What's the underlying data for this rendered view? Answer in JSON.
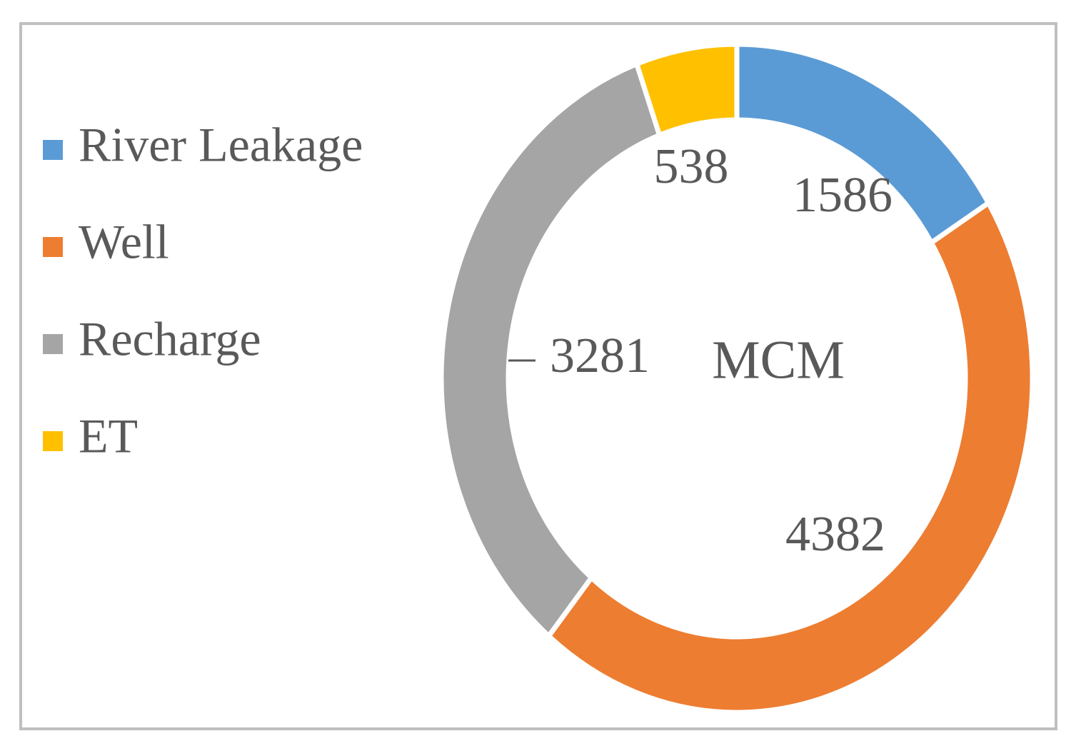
{
  "chart_data": {
    "type": "donut",
    "center_label": "MCM",
    "categories": [
      "River Leakage",
      "Well",
      "Recharge",
      "ET"
    ],
    "values": [
      1586,
      4382,
      3281,
      538
    ],
    "colors": [
      "#5b9bd5",
      "#ed7d31",
      "#a5a5a5",
      "#ffc000"
    ],
    "legend": "left"
  }
}
